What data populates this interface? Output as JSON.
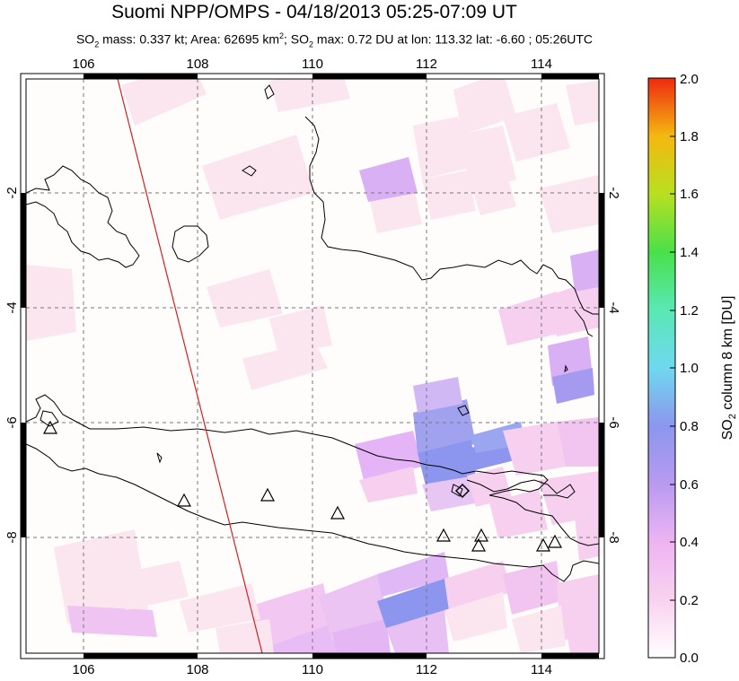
{
  "header": {
    "title": "Suomi NPP/OMPS - 04/18/2013 05:25-07:09 UT",
    "subtitle": {
      "p1": "SO",
      "p1_sub": "2",
      "p2": " mass: 0.337 kt; Area: 62695 km",
      "p2_sup": "2",
      "p3": "; SO",
      "p3_sub": "2",
      "p4": " max: 0.72 DU at lon: 113.32 lat: -6.60 ; 05:26UTC"
    }
  },
  "map": {
    "lon_ticks": [
      "106",
      "108",
      "110",
      "112",
      "114"
    ],
    "lat_ticks_left": [
      "-2",
      "-4",
      "-6",
      "-8"
    ],
    "lat_ticks_right": [
      "-2",
      "-4",
      "-6",
      "-8"
    ],
    "volcano_count_label": "",
    "colors": {
      "coast": "#000000",
      "track": "#d42020",
      "grid": "#777777",
      "pale_pink": "#fbe6f0",
      "light_pink": "#f6d0ee",
      "violet": "#d9b0f4",
      "blue": "#8c96ee"
    }
  },
  "colorbar": {
    "ticks": [
      "0.0",
      "0.2",
      "0.4",
      "0.6",
      "0.8",
      "1.0",
      "1.2",
      "1.4",
      "1.6",
      "1.8",
      "2.0"
    ],
    "label_main": "SO",
    "label_sub": "2",
    "label_rest": " column 8 km [DU]"
  }
}
